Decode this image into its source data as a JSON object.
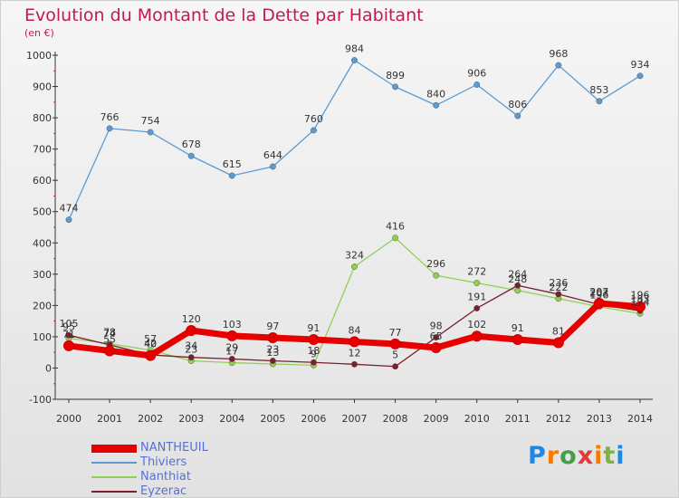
{
  "title": "Evolution du Montant de la Dette par Habitant",
  "subtitle": "(en €)",
  "logo": {
    "text": "Proxiti"
  },
  "colors": {
    "title": "#c2185b",
    "axis": "#333333",
    "legend_text": "#5570d8"
  },
  "chart_data": {
    "type": "line",
    "title": "Evolution du Montant de la Dette par Habitant",
    "subtitle": "(en €)",
    "xlabel": "",
    "ylabel": "",
    "ylim": [
      -100,
      1000
    ],
    "yticks": [
      -100,
      0,
      100,
      200,
      300,
      400,
      500,
      600,
      700,
      800,
      900,
      1000
    ],
    "grid": false,
    "legend": "bottom-left",
    "x": [
      2000,
      2001,
      2002,
      2003,
      2004,
      2005,
      2006,
      2007,
      2008,
      2009,
      2010,
      2011,
      2012,
      2013,
      2014
    ],
    "series": [
      {
        "name": "NANTHEUIL",
        "color": "#e60000",
        "style": "thick",
        "values": [
          71,
          55,
          40,
          120,
          103,
          97,
          91,
          84,
          77,
          65,
          102,
          91,
          81,
          207,
          196
        ],
        "labels": [
          "71",
          "55",
          "40",
          "120",
          "103",
          "97",
          "91",
          "84",
          "77",
          "65",
          "102",
          "91",
          "81",
          "207",
          "196"
        ]
      },
      {
        "name": "Thiviers",
        "color": "#5b9bd5",
        "style": "thin",
        "values": [
          474,
          766,
          754,
          678,
          615,
          644,
          760,
          984,
          899,
          840,
          906,
          806,
          968,
          853,
          934
        ],
        "labels": [
          "474",
          "766",
          "754",
          "678",
          "615",
          "644",
          "760",
          "984",
          "899",
          "840",
          "906",
          "806",
          "968",
          "853",
          "934"
        ]
      },
      {
        "name": "Nanthiat",
        "color": "#8fd14f",
        "style": "thin",
        "values": [
          95,
          78,
          57,
          23,
          17,
          13,
          9,
          324,
          416,
          296,
          272,
          248,
          222,
          196,
          174
        ],
        "labels": [
          "95",
          "78",
          "57",
          "23",
          "17",
          "13",
          "9",
          "324",
          "416",
          "296",
          "272",
          "248",
          "222",
          "196",
          "174"
        ]
      },
      {
        "name": "Eyzerac",
        "color": "#7a1f2e",
        "style": "thin",
        "values": [
          105,
          74,
          42,
          34,
          29,
          23,
          18,
          12,
          5,
          98,
          191,
          264,
          236,
          203,
          183
        ],
        "labels": [
          "105",
          "74",
          "42",
          "34",
          "29",
          "23",
          "18",
          "12",
          "5",
          "98",
          "191",
          "264",
          "236",
          "203",
          "183"
        ]
      }
    ]
  }
}
